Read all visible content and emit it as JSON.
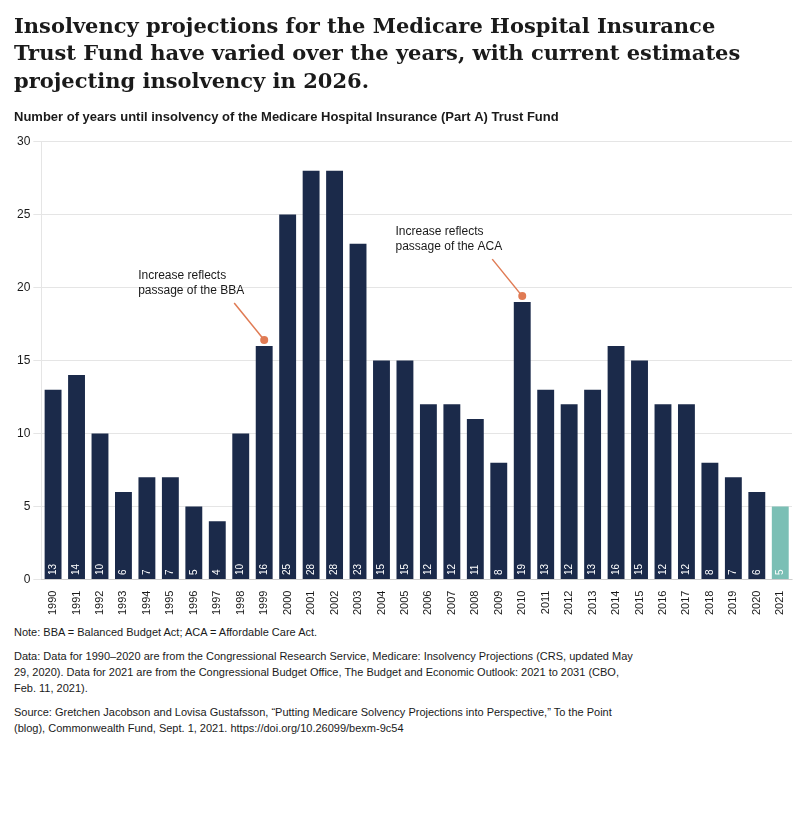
{
  "chart_data": {
    "type": "bar",
    "title": "Insolvency projections for the Medicare Hospital Insurance\nTrust Fund have varied over the years, with current estimates\nprojecting insolvency in 2026.",
    "subtitle": "Number of years until insolvency of the Medicare Hospital Insurance (Part A) Trust Fund",
    "categories": [
      "1990",
      "1991",
      "1992",
      "1993",
      "1994",
      "1995",
      "1996",
      "1997",
      "1998",
      "1999",
      "2000",
      "2001",
      "2002",
      "2003",
      "2004",
      "2005",
      "2006",
      "2007",
      "2008",
      "2009",
      "2010",
      "2011",
      "2012",
      "2013",
      "2014",
      "2015",
      "2016",
      "2017",
      "2018",
      "2019",
      "2020",
      "2021"
    ],
    "values": [
      13,
      14,
      10,
      6,
      7,
      7,
      5,
      4,
      10,
      16,
      25,
      28,
      28,
      23,
      15,
      15,
      12,
      12,
      11,
      8,
      19,
      13,
      12,
      13,
      16,
      15,
      12,
      12,
      8,
      7,
      6,
      5
    ],
    "colors": [
      "#1b2a4a",
      "#1b2a4a",
      "#1b2a4a",
      "#1b2a4a",
      "#1b2a4a",
      "#1b2a4a",
      "#1b2a4a",
      "#1b2a4a",
      "#1b2a4a",
      "#1b2a4a",
      "#1b2a4a",
      "#1b2a4a",
      "#1b2a4a",
      "#1b2a4a",
      "#1b2a4a",
      "#1b2a4a",
      "#1b2a4a",
      "#1b2a4a",
      "#1b2a4a",
      "#1b2a4a",
      "#1b2a4a",
      "#1b2a4a",
      "#1b2a4a",
      "#1b2a4a",
      "#1b2a4a",
      "#1b2a4a",
      "#1b2a4a",
      "#1b2a4a",
      "#1b2a4a",
      "#1b2a4a",
      "#1b2a4a",
      "#7bbfb5"
    ],
    "ylim": [
      0,
      30
    ],
    "yticks": [
      0,
      5,
      10,
      15,
      20,
      25,
      30
    ],
    "grid": true,
    "data_labels": true,
    "annotations": [
      {
        "text": "Increase reflects\npassage of the BBA",
        "category": "1999",
        "color": "#e07b54"
      },
      {
        "text": "Increase reflects\npassage of the ACA",
        "category": "2010",
        "color": "#e07b54"
      }
    ],
    "notes": [
      "Note: BBA = Balanced Budget Act; ACA = Affordable Care Act.",
      "Data: Data for 1990–2020 are from the Congressional Research Service, Medicare: Insolvency Projections (CRS, updated May\n29, 2020). Data for 2021 are from the Congressional Budget Office, The Budget and Economic Outlook: 2021 to 2031 (CBO,\nFeb. 11, 2021).",
      "Source: Gretchen Jacobson and Lovisa Gustafsson, “Putting Medicare Solvency Projections into Perspective,” To the Point\n(blog), Commonwealth Fund, Sept. 1, 2021. https://doi.org/10.26099/bexm-9c54"
    ]
  }
}
